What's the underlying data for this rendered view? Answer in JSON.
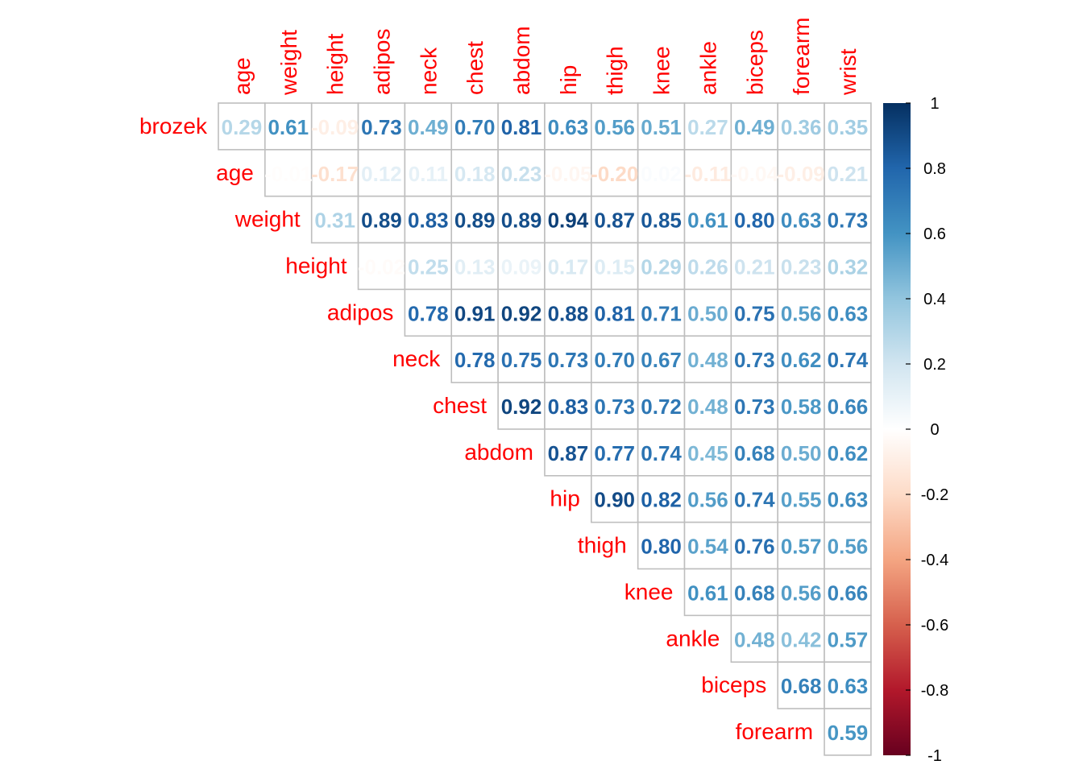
{
  "chart_data": {
    "type": "heatmap",
    "subtype": "correlation-upper-triangle",
    "row_labels": [
      "brozek",
      "age",
      "weight",
      "height",
      "adipos",
      "neck",
      "chest",
      "abdom",
      "hip",
      "thigh",
      "knee",
      "ankle",
      "biceps",
      "forearm"
    ],
    "col_labels": [
      "age",
      "weight",
      "height",
      "adipos",
      "neck",
      "chest",
      "abdom",
      "hip",
      "thigh",
      "knee",
      "ankle",
      "biceps",
      "forearm",
      "wrist"
    ],
    "cells": [
      {
        "row": "brozek",
        "col": "age",
        "value": 0.29,
        "label": "0.29"
      },
      {
        "row": "brozek",
        "col": "weight",
        "value": 0.61,
        "label": "0.61"
      },
      {
        "row": "brozek",
        "col": "height",
        "value": -0.09,
        "label": "-0.09"
      },
      {
        "row": "brozek",
        "col": "adipos",
        "value": 0.73,
        "label": "0.73"
      },
      {
        "row": "brozek",
        "col": "neck",
        "value": 0.49,
        "label": "0.49"
      },
      {
        "row": "brozek",
        "col": "chest",
        "value": 0.7,
        "label": "0.70"
      },
      {
        "row": "brozek",
        "col": "abdom",
        "value": 0.81,
        "label": "0.81"
      },
      {
        "row": "brozek",
        "col": "hip",
        "value": 0.63,
        "label": "0.63"
      },
      {
        "row": "brozek",
        "col": "thigh",
        "value": 0.56,
        "label": "0.56"
      },
      {
        "row": "brozek",
        "col": "knee",
        "value": 0.51,
        "label": "0.51"
      },
      {
        "row": "brozek",
        "col": "ankle",
        "value": 0.27,
        "label": "0.27"
      },
      {
        "row": "brozek",
        "col": "biceps",
        "value": 0.49,
        "label": "0.49"
      },
      {
        "row": "brozek",
        "col": "forearm",
        "value": 0.36,
        "label": "0.36"
      },
      {
        "row": "brozek",
        "col": "wrist",
        "value": 0.35,
        "label": "0.35"
      },
      {
        "row": "age",
        "col": "weight",
        "value": -0.01,
        "label": "-0.01"
      },
      {
        "row": "age",
        "col": "height",
        "value": -0.17,
        "label": "-0.17"
      },
      {
        "row": "age",
        "col": "adipos",
        "value": 0.12,
        "label": "0.12"
      },
      {
        "row": "age",
        "col": "neck",
        "value": 0.11,
        "label": "0.11"
      },
      {
        "row": "age",
        "col": "chest",
        "value": 0.18,
        "label": "0.18"
      },
      {
        "row": "age",
        "col": "abdom",
        "value": 0.23,
        "label": "0.23"
      },
      {
        "row": "age",
        "col": "hip",
        "value": -0.05,
        "label": "-0.05"
      },
      {
        "row": "age",
        "col": "thigh",
        "value": -0.2,
        "label": "-0.20"
      },
      {
        "row": "age",
        "col": "knee",
        "value": 0.02,
        "label": "0.02"
      },
      {
        "row": "age",
        "col": "ankle",
        "value": -0.11,
        "label": "-0.11"
      },
      {
        "row": "age",
        "col": "biceps",
        "value": -0.04,
        "label": "-0.04"
      },
      {
        "row": "age",
        "col": "forearm",
        "value": -0.09,
        "label": "-0.09"
      },
      {
        "row": "age",
        "col": "wrist",
        "value": 0.21,
        "label": "0.21"
      },
      {
        "row": "weight",
        "col": "height",
        "value": 0.31,
        "label": "0.31"
      },
      {
        "row": "weight",
        "col": "adipos",
        "value": 0.89,
        "label": "0.89"
      },
      {
        "row": "weight",
        "col": "neck",
        "value": 0.83,
        "label": "0.83"
      },
      {
        "row": "weight",
        "col": "chest",
        "value": 0.89,
        "label": "0.89"
      },
      {
        "row": "weight",
        "col": "abdom",
        "value": 0.89,
        "label": "0.89"
      },
      {
        "row": "weight",
        "col": "hip",
        "value": 0.94,
        "label": "0.94"
      },
      {
        "row": "weight",
        "col": "thigh",
        "value": 0.87,
        "label": "0.87"
      },
      {
        "row": "weight",
        "col": "knee",
        "value": 0.85,
        "label": "0.85"
      },
      {
        "row": "weight",
        "col": "ankle",
        "value": 0.61,
        "label": "0.61"
      },
      {
        "row": "weight",
        "col": "biceps",
        "value": 0.8,
        "label": "0.80"
      },
      {
        "row": "weight",
        "col": "forearm",
        "value": 0.63,
        "label": "0.63"
      },
      {
        "row": "weight",
        "col": "wrist",
        "value": 0.73,
        "label": "0.73"
      },
      {
        "row": "height",
        "col": "adipos",
        "value": -0.02,
        "label": "-0.02"
      },
      {
        "row": "height",
        "col": "neck",
        "value": 0.25,
        "label": "0.25"
      },
      {
        "row": "height",
        "col": "chest",
        "value": 0.13,
        "label": "0.13"
      },
      {
        "row": "height",
        "col": "abdom",
        "value": 0.09,
        "label": "0.09"
      },
      {
        "row": "height",
        "col": "hip",
        "value": 0.17,
        "label": "0.17"
      },
      {
        "row": "height",
        "col": "thigh",
        "value": 0.15,
        "label": "0.15"
      },
      {
        "row": "height",
        "col": "knee",
        "value": 0.29,
        "label": "0.29"
      },
      {
        "row": "height",
        "col": "ankle",
        "value": 0.26,
        "label": "0.26"
      },
      {
        "row": "height",
        "col": "biceps",
        "value": 0.21,
        "label": "0.21"
      },
      {
        "row": "height",
        "col": "forearm",
        "value": 0.23,
        "label": "0.23"
      },
      {
        "row": "height",
        "col": "wrist",
        "value": 0.32,
        "label": "0.32"
      },
      {
        "row": "adipos",
        "col": "neck",
        "value": 0.78,
        "label": "0.78"
      },
      {
        "row": "adipos",
        "col": "chest",
        "value": 0.91,
        "label": "0.91"
      },
      {
        "row": "adipos",
        "col": "abdom",
        "value": 0.92,
        "label": "0.92"
      },
      {
        "row": "adipos",
        "col": "hip",
        "value": 0.88,
        "label": "0.88"
      },
      {
        "row": "adipos",
        "col": "thigh",
        "value": 0.81,
        "label": "0.81"
      },
      {
        "row": "adipos",
        "col": "knee",
        "value": 0.71,
        "label": "0.71"
      },
      {
        "row": "adipos",
        "col": "ankle",
        "value": 0.5,
        "label": "0.50"
      },
      {
        "row": "adipos",
        "col": "biceps",
        "value": 0.75,
        "label": "0.75"
      },
      {
        "row": "adipos",
        "col": "forearm",
        "value": 0.56,
        "label": "0.56"
      },
      {
        "row": "adipos",
        "col": "wrist",
        "value": 0.63,
        "label": "0.63"
      },
      {
        "row": "neck",
        "col": "chest",
        "value": 0.78,
        "label": "0.78"
      },
      {
        "row": "neck",
        "col": "abdom",
        "value": 0.75,
        "label": "0.75"
      },
      {
        "row": "neck",
        "col": "hip",
        "value": 0.73,
        "label": "0.73"
      },
      {
        "row": "neck",
        "col": "thigh",
        "value": 0.7,
        "label": "0.70"
      },
      {
        "row": "neck",
        "col": "knee",
        "value": 0.67,
        "label": "0.67"
      },
      {
        "row": "neck",
        "col": "ankle",
        "value": 0.48,
        "label": "0.48"
      },
      {
        "row": "neck",
        "col": "biceps",
        "value": 0.73,
        "label": "0.73"
      },
      {
        "row": "neck",
        "col": "forearm",
        "value": 0.62,
        "label": "0.62"
      },
      {
        "row": "neck",
        "col": "wrist",
        "value": 0.74,
        "label": "0.74"
      },
      {
        "row": "chest",
        "col": "abdom",
        "value": 0.92,
        "label": "0.92"
      },
      {
        "row": "chest",
        "col": "hip",
        "value": 0.83,
        "label": "0.83"
      },
      {
        "row": "chest",
        "col": "thigh",
        "value": 0.73,
        "label": "0.73"
      },
      {
        "row": "chest",
        "col": "knee",
        "value": 0.72,
        "label": "0.72"
      },
      {
        "row": "chest",
        "col": "ankle",
        "value": 0.48,
        "label": "0.48"
      },
      {
        "row": "chest",
        "col": "biceps",
        "value": 0.73,
        "label": "0.73"
      },
      {
        "row": "chest",
        "col": "forearm",
        "value": 0.58,
        "label": "0.58"
      },
      {
        "row": "chest",
        "col": "wrist",
        "value": 0.66,
        "label": "0.66"
      },
      {
        "row": "abdom",
        "col": "hip",
        "value": 0.87,
        "label": "0.87"
      },
      {
        "row": "abdom",
        "col": "thigh",
        "value": 0.77,
        "label": "0.77"
      },
      {
        "row": "abdom",
        "col": "knee",
        "value": 0.74,
        "label": "0.74"
      },
      {
        "row": "abdom",
        "col": "ankle",
        "value": 0.45,
        "label": "0.45"
      },
      {
        "row": "abdom",
        "col": "biceps",
        "value": 0.68,
        "label": "0.68"
      },
      {
        "row": "abdom",
        "col": "forearm",
        "value": 0.5,
        "label": "0.50"
      },
      {
        "row": "abdom",
        "col": "wrist",
        "value": 0.62,
        "label": "0.62"
      },
      {
        "row": "hip",
        "col": "thigh",
        "value": 0.9,
        "label": "0.90"
      },
      {
        "row": "hip",
        "col": "knee",
        "value": 0.82,
        "label": "0.82"
      },
      {
        "row": "hip",
        "col": "ankle",
        "value": 0.56,
        "label": "0.56"
      },
      {
        "row": "hip",
        "col": "biceps",
        "value": 0.74,
        "label": "0.74"
      },
      {
        "row": "hip",
        "col": "forearm",
        "value": 0.55,
        "label": "0.55"
      },
      {
        "row": "hip",
        "col": "wrist",
        "value": 0.63,
        "label": "0.63"
      },
      {
        "row": "thigh",
        "col": "knee",
        "value": 0.8,
        "label": "0.80"
      },
      {
        "row": "thigh",
        "col": "ankle",
        "value": 0.54,
        "label": "0.54"
      },
      {
        "row": "thigh",
        "col": "biceps",
        "value": 0.76,
        "label": "0.76"
      },
      {
        "row": "thigh",
        "col": "forearm",
        "value": 0.57,
        "label": "0.57"
      },
      {
        "row": "thigh",
        "col": "wrist",
        "value": 0.56,
        "label": "0.56"
      },
      {
        "row": "knee",
        "col": "ankle",
        "value": 0.61,
        "label": "0.61"
      },
      {
        "row": "knee",
        "col": "biceps",
        "value": 0.68,
        "label": "0.68"
      },
      {
        "row": "knee",
        "col": "forearm",
        "value": 0.56,
        "label": "0.56"
      },
      {
        "row": "knee",
        "col": "wrist",
        "value": 0.66,
        "label": "0.66"
      },
      {
        "row": "ankle",
        "col": "biceps",
        "value": 0.48,
        "label": "0.48"
      },
      {
        "row": "ankle",
        "col": "forearm",
        "value": 0.42,
        "label": "0.42"
      },
      {
        "row": "ankle",
        "col": "wrist",
        "value": 0.57,
        "label": "0.57"
      },
      {
        "row": "biceps",
        "col": "forearm",
        "value": 0.68,
        "label": "0.68"
      },
      {
        "row": "biceps",
        "col": "wrist",
        "value": 0.63,
        "label": "0.63"
      },
      {
        "row": "forearm",
        "col": "wrist",
        "value": 0.59,
        "label": "0.59"
      }
    ],
    "colorbar": {
      "range": [
        -1,
        1
      ],
      "ticks": [
        1,
        0.8,
        0.6,
        0.4,
        0.2,
        0,
        -0.2,
        -0.4,
        -0.6,
        -0.8,
        -1
      ],
      "tick_labels": [
        "1",
        "0.8",
        "0.6",
        "0.4",
        "0.2",
        "0",
        "-0.2",
        "-0.4",
        "-0.6",
        "-0.8",
        "-1"
      ],
      "colors": [
        "#67001F",
        "#B2182B",
        "#D6604D",
        "#F4A582",
        "#FDDBC7",
        "#FFFFFF",
        "#D1E5F0",
        "#92C5DE",
        "#4393C3",
        "#2166AC",
        "#053061"
      ],
      "placement": "right"
    },
    "label_color": "#FF0000",
    "grid_color": "#BEBEBE"
  }
}
